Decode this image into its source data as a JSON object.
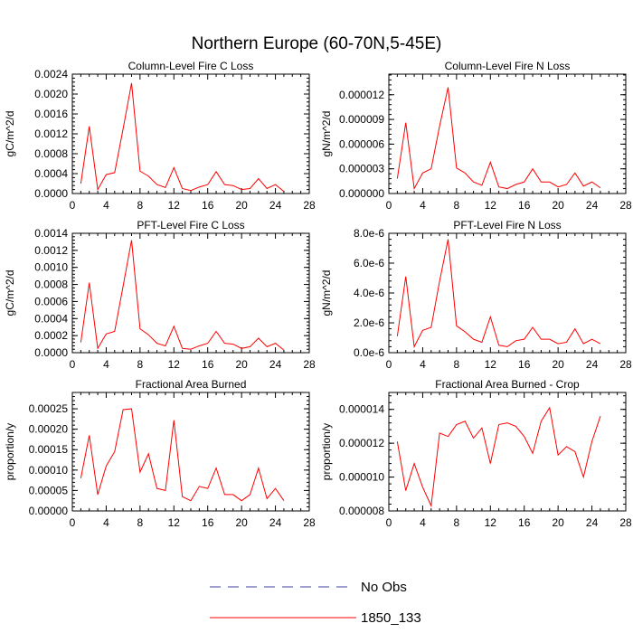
{
  "page_title": "Northern Europe (60-70N,5-45E)",
  "legend": {
    "items": [
      {
        "label": "No Obs",
        "color": "#4040a0",
        "style": "dashed"
      },
      {
        "label": "1850_133",
        "color": "#ff0000",
        "style": "solid"
      }
    ]
  },
  "chart_data": [
    {
      "type": "line",
      "title": "Column-Level Fire C Loss",
      "ylabel": "gC/m^2/d",
      "xlim": [
        0,
        28
      ],
      "ylim": [
        0,
        0.0024
      ],
      "xticks": [
        0,
        4,
        8,
        12,
        16,
        20,
        24,
        28
      ],
      "xtick_labels": [
        "0",
        "4",
        "8",
        "12",
        "16",
        "20",
        "24",
        "28"
      ],
      "yticks": [
        0,
        0.0004,
        0.0008,
        0.0012,
        0.0016,
        0.002,
        0.0024
      ],
      "ytick_labels": [
        "0.0000",
        "0.0004",
        "0.0008",
        "0.0012",
        "0.0016",
        "0.0020",
        "0.0024"
      ],
      "series": [
        {
          "name": "1850_133",
          "color": "#ff0000",
          "x": [
            1,
            2,
            3,
            4,
            5,
            6,
            7,
            8,
            9,
            10,
            11,
            12,
            13,
            14,
            15,
            16,
            17,
            18,
            19,
            20,
            21,
            22,
            23,
            24,
            25
          ],
          "y": [
            0.0002,
            0.00135,
            8e-05,
            0.00038,
            0.00042,
            0.0013,
            0.00222,
            0.00045,
            0.00035,
            0.00018,
            0.00012,
            0.00052,
            0.0001,
            6e-05,
            0.00013,
            0.00018,
            0.00044,
            0.00018,
            0.00016,
            8e-05,
            0.0001,
            0.0003,
            0.0001,
            0.00018,
            4e-05
          ]
        }
      ]
    },
    {
      "type": "line",
      "title": "Column-Level Fire N Loss",
      "ylabel": "gN/m^2/d",
      "xlim": [
        0,
        28
      ],
      "ylim": [
        0,
        1.45e-05
      ],
      "xticks": [
        0,
        4,
        8,
        12,
        16,
        20,
        24,
        28
      ],
      "xtick_labels": [
        "0",
        "4",
        "8",
        "12",
        "16",
        "20",
        "24",
        "28"
      ],
      "yticks": [
        0,
        3e-06,
        6e-06,
        9e-06,
        1.2e-05
      ],
      "ytick_labels": [
        "0.000000",
        "0.000003",
        "0.000006",
        "0.000009",
        "0.000012"
      ],
      "series": [
        {
          "name": "1850_133",
          "color": "#ff0000",
          "x": [
            1,
            2,
            3,
            4,
            5,
            6,
            7,
            8,
            9,
            10,
            11,
            12,
            13,
            14,
            15,
            16,
            17,
            18,
            19,
            20,
            21,
            22,
            23,
            24,
            25
          ],
          "y": [
            1.8e-06,
            8.6e-06,
            6e-07,
            2.5e-06,
            3e-06,
            8.2e-06,
            1.29e-05,
            3.1e-06,
            2.5e-06,
            1.4e-06,
            1e-06,
            3.8e-06,
            8e-07,
            6e-07,
            1.1e-06,
            1.4e-06,
            3e-06,
            1.4e-06,
            1.4e-06,
            8e-07,
            1.1e-06,
            2.5e-06,
            9e-07,
            1.4e-06,
            7e-07
          ]
        }
      ]
    },
    {
      "type": "line",
      "title": "PFT-Level Fire C Loss",
      "ylabel": "gC/m^2/d",
      "xlim": [
        0,
        28
      ],
      "ylim": [
        0,
        0.0014
      ],
      "xticks": [
        0,
        4,
        8,
        12,
        16,
        20,
        24,
        28
      ],
      "xtick_labels": [
        "0",
        "4",
        "8",
        "12",
        "16",
        "20",
        "24",
        "28"
      ],
      "yticks": [
        0,
        0.0002,
        0.0004,
        0.0006,
        0.0008,
        0.001,
        0.0012,
        0.0014
      ],
      "ytick_labels": [
        "0.0000",
        "0.0002",
        "0.0004",
        "0.0006",
        "0.0008",
        "0.0010",
        "0.0012",
        "0.0014"
      ],
      "series": [
        {
          "name": "1850_133",
          "color": "#ff0000",
          "x": [
            1,
            2,
            3,
            4,
            5,
            6,
            7,
            8,
            9,
            10,
            11,
            12,
            13,
            14,
            15,
            16,
            17,
            18,
            19,
            20,
            21,
            22,
            23,
            24,
            25
          ],
          "y": [
            0.00012,
            0.00082,
            5e-05,
            0.00022,
            0.00025,
            0.00078,
            0.00132,
            0.00028,
            0.00021,
            0.00011,
            8e-05,
            0.00031,
            5e-05,
            4e-05,
            8e-05,
            0.00011,
            0.00025,
            0.00011,
            0.0001,
            5e-05,
            7e-05,
            0.00017,
            7e-05,
            0.00011,
            3e-05
          ]
        }
      ]
    },
    {
      "type": "line",
      "title": "PFT-Level Fire N Loss",
      "ylabel": "gN/m^2/d",
      "xlim": [
        0,
        28
      ],
      "ylim": [
        0,
        8e-06
      ],
      "xticks": [
        0,
        4,
        8,
        12,
        16,
        20,
        24,
        28
      ],
      "xtick_labels": [
        "0",
        "4",
        "8",
        "12",
        "16",
        "20",
        "24",
        "28"
      ],
      "yticks": [
        0,
        2e-06,
        4e-06,
        6e-06,
        8e-06
      ],
      "ytick_labels": [
        "0.0e-6",
        "2.0e-6",
        "4.0e-6",
        "6.0e-6",
        "8.0e-6"
      ],
      "series": [
        {
          "name": "1850_133",
          "color": "#ff0000",
          "x": [
            1,
            2,
            3,
            4,
            5,
            6,
            7,
            8,
            9,
            10,
            11,
            12,
            13,
            14,
            15,
            16,
            17,
            18,
            19,
            20,
            21,
            22,
            23,
            24,
            25
          ],
          "y": [
            1.1e-06,
            5.1e-06,
            4e-07,
            1.5e-06,
            1.7e-06,
            4.8e-06,
            7.6e-06,
            1.8e-06,
            1.4e-06,
            9e-07,
            7e-07,
            2.4e-06,
            5e-07,
            4e-07,
            8e-07,
            9e-07,
            1.7e-06,
            9e-07,
            9e-07,
            6e-07,
            7e-07,
            1.6e-06,
            6e-07,
            9e-07,
            6e-07
          ]
        }
      ]
    },
    {
      "type": "line",
      "title": "Fractional Area Burned",
      "ylabel": "proportion/y",
      "xlim": [
        0,
        28
      ],
      "ylim": [
        0,
        0.00029
      ],
      "xticks": [
        0,
        4,
        8,
        12,
        16,
        20,
        24,
        28
      ],
      "xtick_labels": [
        "0",
        "4",
        "8",
        "12",
        "16",
        "20",
        "24",
        "28"
      ],
      "yticks": [
        0,
        5e-05,
        0.0001,
        0.00015,
        0.0002,
        0.00025
      ],
      "ytick_labels": [
        "0.00000",
        "0.00005",
        "0.00010",
        "0.00015",
        "0.00020",
        "0.00025"
      ],
      "series": [
        {
          "name": "1850_133",
          "color": "#ff0000",
          "x": [
            1,
            2,
            3,
            4,
            5,
            6,
            7,
            8,
            9,
            10,
            11,
            12,
            13,
            14,
            15,
            16,
            17,
            18,
            19,
            20,
            21,
            22,
            23,
            24,
            25
          ],
          "y": [
            8e-05,
            0.000185,
            4e-05,
            0.00011,
            0.000145,
            0.000248,
            0.00025,
            9.5e-05,
            0.00014,
            5.5e-05,
            5e-05,
            0.000222,
            3.5e-05,
            2.5e-05,
            6e-05,
            5.5e-05,
            0.000105,
            4e-05,
            4e-05,
            2.5e-05,
            4e-05,
            0.000105,
            3e-05,
            5.5e-05,
            2.5e-05
          ]
        }
      ]
    },
    {
      "type": "line",
      "title": "Fractional Area Burned - Crop",
      "ylabel": "proportion/y",
      "xlim": [
        0,
        28
      ],
      "ylim": [
        8e-06,
        1.5e-05
      ],
      "xticks": [
        0,
        4,
        8,
        12,
        16,
        20,
        24,
        28
      ],
      "xtick_labels": [
        "0",
        "4",
        "8",
        "12",
        "16",
        "20",
        "24",
        "28"
      ],
      "yticks": [
        8e-06,
        1e-05,
        1.2e-05,
        1.4e-05
      ],
      "ytick_labels": [
        "0.000008",
        "0.000010",
        "0.000012",
        "0.000014"
      ],
      "series": [
        {
          "name": "1850_133",
          "color": "#ff0000",
          "x": [
            1,
            2,
            3,
            4,
            5,
            6,
            7,
            8,
            9,
            10,
            11,
            12,
            13,
            14,
            15,
            16,
            17,
            18,
            19,
            20,
            21,
            22,
            23,
            24,
            25
          ],
          "y": [
            1.21e-05,
            9.2e-06,
            1.08e-05,
            9.4e-06,
            8.3e-06,
            1.26e-05,
            1.24e-05,
            1.31e-05,
            1.33e-05,
            1.23e-05,
            1.29e-05,
            1.08e-05,
            1.31e-05,
            1.32e-05,
            1.3e-05,
            1.24e-05,
            1.14e-05,
            1.33e-05,
            1.41e-05,
            1.13e-05,
            1.18e-05,
            1.15e-05,
            1e-05,
            1.21e-05,
            1.36e-05
          ]
        }
      ]
    }
  ]
}
